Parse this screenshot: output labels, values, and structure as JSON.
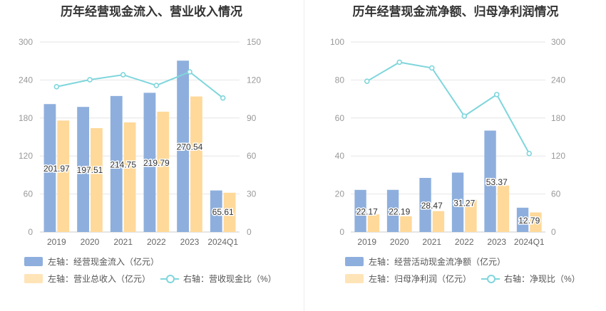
{
  "colors": {
    "bar1": "#8eafdd",
    "bar2": "#ffd99a",
    "line": "#7fd6dc",
    "axis": "#999999",
    "grid": "#e6e6e6"
  },
  "chart_data": [
    {
      "type": "bar",
      "title": "历年经营现金流入、营业收入情况",
      "categories": [
        "2019",
        "2020",
        "2021",
        "2022",
        "2023",
        "2024Q1"
      ],
      "yleft_ticks": [
        "0",
        "60",
        "120",
        "180",
        "240",
        "300"
      ],
      "yright_ticks": [
        "0",
        "30",
        "60",
        "90",
        "120",
        "150"
      ],
      "ylim_left": [
        0,
        300
      ],
      "ylim_right": [
        0,
        150
      ],
      "series": [
        {
          "name": "左轴：经营现金流入（亿元）",
          "kind": "bar",
          "axis": "left",
          "values": [
            201.97,
            197.51,
            214.75,
            219.79,
            270.54,
            65.61
          ],
          "labels": [
            "201.97",
            "197.51",
            "214.75",
            "219.79",
            "270.54",
            "65.61"
          ]
        },
        {
          "name": "左轴：营业总收入（亿元）",
          "kind": "bar",
          "axis": "left",
          "values": [
            176,
            164,
            173,
            190,
            214,
            62
          ]
        },
        {
          "name": "右轴：营收现金比（%）",
          "kind": "line",
          "axis": "right",
          "values": [
            114.7,
            120.2,
            124.1,
            115.7,
            126.4,
            105.8
          ]
        }
      ]
    },
    {
      "type": "bar",
      "title": "历年经营现金流净额、归母净利润情况",
      "categories": [
        "2019",
        "2020",
        "2021",
        "2022",
        "2023",
        "2024Q1"
      ],
      "yleft_ticks": [
        "0",
        "20",
        "40",
        "60",
        "80",
        "100"
      ],
      "yright_ticks": [
        "0",
        "60",
        "120",
        "180",
        "240",
        "300"
      ],
      "ylim_left": [
        0,
        100
      ],
      "ylim_right": [
        0,
        300
      ],
      "series": [
        {
          "name": "左轴：经营活动现金流净额（亿元）",
          "kind": "bar",
          "axis": "left",
          "values": [
            22.17,
            22.19,
            28.47,
            31.27,
            53.37,
            12.79
          ],
          "labels": [
            "22.17",
            "22.19",
            "28.47",
            "31.27",
            "53.37",
            "12.79"
          ]
        },
        {
          "name": "左轴：归母净利润（亿元）",
          "kind": "bar",
          "axis": "left",
          "values": [
            9.3,
            8.3,
            11.0,
            17.0,
            24.5,
            10.3
          ]
        },
        {
          "name": "右轴：净现比（%）",
          "kind": "line",
          "axis": "right",
          "values": [
            238,
            268,
            259,
            183,
            217,
            124
          ]
        }
      ]
    }
  ]
}
